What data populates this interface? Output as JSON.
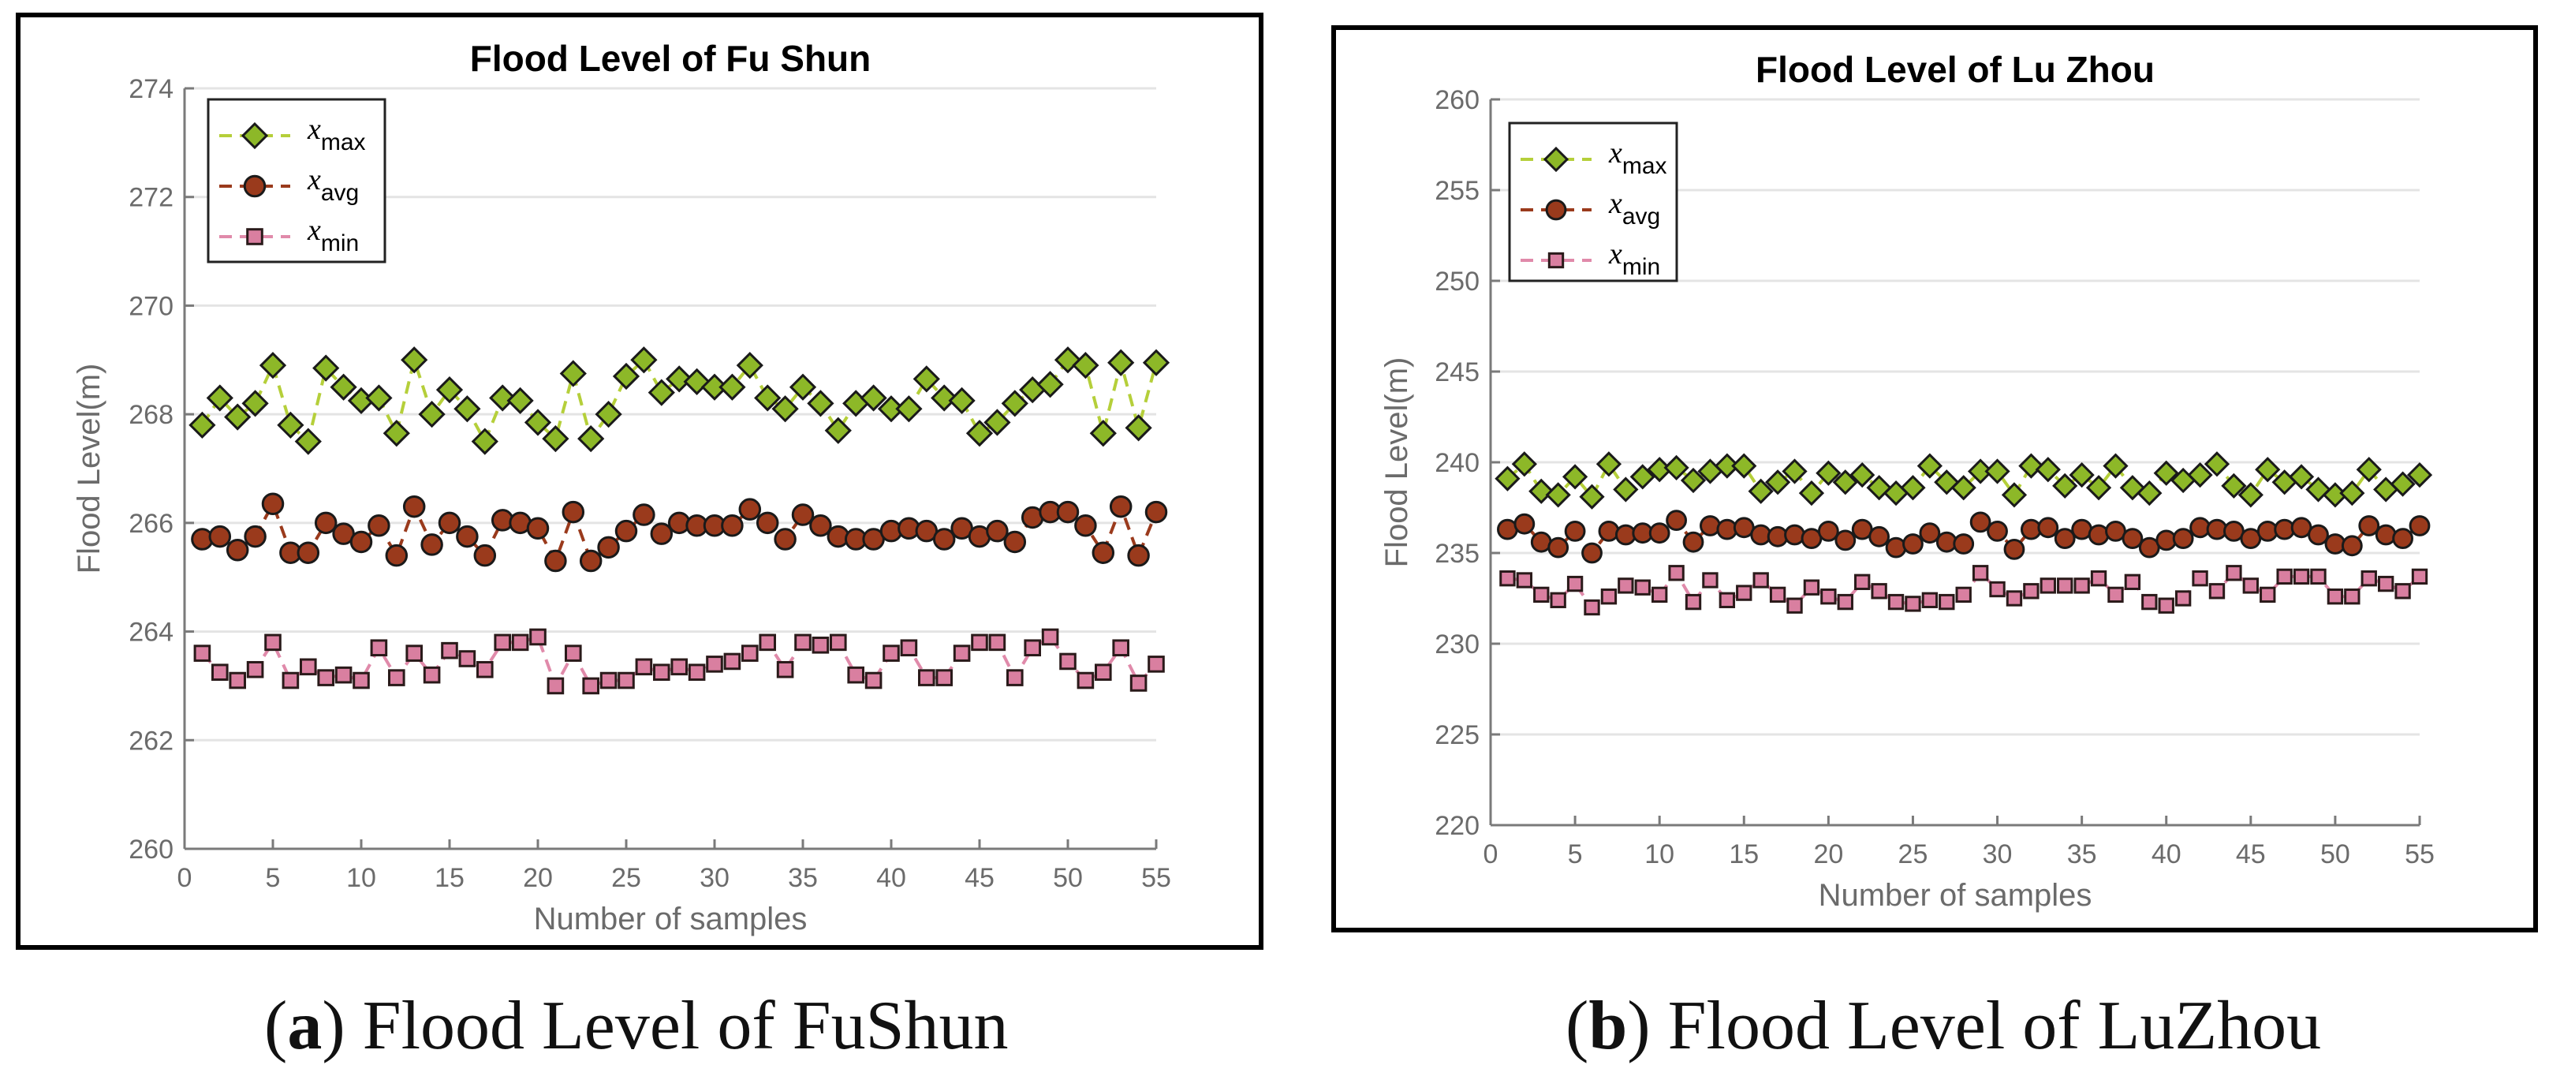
{
  "colors": {
    "max_fill": "#8db828",
    "max_line": "#b5cf3a",
    "avg_fill": "#9a3a1c",
    "avg_line": "#9a3a1c",
    "min_fill": "#d97fa0",
    "min_line": "#e08aaa",
    "axis": "#7a7a7a",
    "grid": "#e4e4e4",
    "text": "#6b6b6b"
  },
  "captions": [
    {
      "letter": "a",
      "text": "Flood Level of FuShun"
    },
    {
      "letter": "b",
      "text": "Flood Level of LuZhou"
    }
  ],
  "chart_data": [
    {
      "type": "line",
      "title": "Flood Level of Fu Shun",
      "xlabel": "Number of samples",
      "ylabel": "Flood Level(m)",
      "xlim": [
        0,
        55
      ],
      "ylim": [
        260,
        274
      ],
      "xticks": [
        0,
        5,
        10,
        15,
        20,
        25,
        30,
        35,
        40,
        45,
        50,
        55
      ],
      "yticks": [
        260,
        262,
        264,
        266,
        268,
        270,
        272,
        274
      ],
      "grid": true,
      "legend_position": "top-left",
      "legend": [
        {
          "base": "x",
          "sub": "max",
          "marker": "diamond"
        },
        {
          "base": "x",
          "sub": "avg",
          "marker": "circle"
        },
        {
          "base": "x",
          "sub": "min",
          "marker": "square"
        }
      ],
      "x": [
        1,
        2,
        3,
        4,
        5,
        6,
        7,
        8,
        9,
        10,
        11,
        12,
        13,
        14,
        15,
        16,
        17,
        18,
        19,
        20,
        21,
        22,
        23,
        24,
        25,
        26,
        27,
        28,
        29,
        30,
        31,
        32,
        33,
        34,
        35,
        36,
        37,
        38,
        39,
        40,
        41,
        42,
        43,
        44,
        45,
        46,
        47,
        48,
        49,
        50,
        51,
        52,
        53,
        54,
        55
      ],
      "series": [
        {
          "name": "x_max",
          "values": [
            267.8,
            268.3,
            267.95,
            268.2,
            268.9,
            267.8,
            267.5,
            268.85,
            268.5,
            268.25,
            268.3,
            267.65,
            269.0,
            268.0,
            268.45,
            268.1,
            267.5,
            268.3,
            268.25,
            267.85,
            267.55,
            268.75,
            267.55,
            268.0,
            268.7,
            269.0,
            268.4,
            268.65,
            268.6,
            268.5,
            268.5,
            268.9,
            268.3,
            268.1,
            268.5,
            268.2,
            267.7,
            268.2,
            268.3,
            268.1,
            268.1,
            268.65,
            268.3,
            268.25,
            267.65,
            267.85,
            268.2,
            268.45,
            268.55,
            269.0,
            268.9,
            267.65,
            268.95,
            267.75,
            268.95
          ]
        },
        {
          "name": "x_avg",
          "values": [
            265.7,
            265.75,
            265.5,
            265.75,
            266.35,
            265.45,
            265.45,
            266.0,
            265.8,
            265.65,
            265.95,
            265.4,
            266.3,
            265.6,
            266.0,
            265.75,
            265.4,
            266.05,
            266.0,
            265.9,
            265.3,
            266.2,
            265.3,
            265.55,
            265.85,
            266.15,
            265.8,
            266.0,
            265.95,
            265.95,
            265.95,
            266.25,
            266.0,
            265.7,
            266.15,
            265.95,
            265.75,
            265.7,
            265.7,
            265.85,
            265.9,
            265.85,
            265.7,
            265.9,
            265.75,
            265.85,
            265.65,
            266.1,
            266.2,
            266.2,
            265.95,
            265.45,
            266.3,
            265.4,
            266.2
          ]
        },
        {
          "name": "x_min",
          "values": [
            263.6,
            263.25,
            263.1,
            263.3,
            263.8,
            263.1,
            263.35,
            263.15,
            263.2,
            263.1,
            263.7,
            263.15,
            263.6,
            263.2,
            263.65,
            263.5,
            263.3,
            263.8,
            263.8,
            263.9,
            263.0,
            263.6,
            263.0,
            263.1,
            263.1,
            263.35,
            263.25,
            263.35,
            263.25,
            263.4,
            263.45,
            263.6,
            263.8,
            263.3,
            263.8,
            263.75,
            263.8,
            263.2,
            263.1,
            263.6,
            263.7,
            263.15,
            263.15,
            263.6,
            263.8,
            263.8,
            263.15,
            263.7,
            263.9,
            263.45,
            263.1,
            263.25,
            263.7,
            263.05,
            263.4
          ]
        }
      ]
    },
    {
      "type": "line",
      "title": "Flood Level of Lu Zhou",
      "xlabel": "Number of samples",
      "ylabel": "Flood Level(m)",
      "xlim": [
        0,
        55
      ],
      "ylim": [
        220,
        260
      ],
      "xticks": [
        0,
        5,
        10,
        15,
        20,
        25,
        30,
        35,
        40,
        45,
        50,
        55
      ],
      "yticks": [
        220,
        225,
        230,
        235,
        240,
        245,
        250,
        255,
        260
      ],
      "grid": true,
      "legend_position": "top-left",
      "legend": [
        {
          "base": "x",
          "sub": "max",
          "marker": "diamond"
        },
        {
          "base": "x",
          "sub": "avg",
          "marker": "circle"
        },
        {
          "base": "x",
          "sub": "min",
          "marker": "square"
        }
      ],
      "x": [
        1,
        2,
        3,
        4,
        5,
        6,
        7,
        8,
        9,
        10,
        11,
        12,
        13,
        14,
        15,
        16,
        17,
        18,
        19,
        20,
        21,
        22,
        23,
        24,
        25,
        26,
        27,
        28,
        29,
        30,
        31,
        32,
        33,
        34,
        35,
        36,
        37,
        38,
        39,
        40,
        41,
        42,
        43,
        44,
        45,
        46,
        47,
        48,
        49,
        50,
        51,
        52,
        53,
        54,
        55
      ],
      "series": [
        {
          "name": "x_max",
          "values": [
            239.1,
            239.9,
            238.4,
            238.2,
            239.2,
            238.1,
            239.9,
            238.5,
            239.2,
            239.6,
            239.7,
            239.0,
            239.5,
            239.8,
            239.8,
            238.4,
            238.9,
            239.5,
            238.3,
            239.4,
            238.9,
            239.3,
            238.6,
            238.3,
            238.6,
            239.8,
            238.9,
            238.6,
            239.5,
            239.5,
            238.2,
            239.8,
            239.6,
            238.7,
            239.3,
            238.6,
            239.8,
            238.6,
            238.3,
            239.4,
            239.0,
            239.3,
            239.9,
            238.7,
            238.2,
            239.6,
            238.9,
            239.2,
            238.5,
            238.2,
            238.3,
            239.6,
            238.5,
            238.8,
            239.3
          ]
        },
        {
          "name": "x_avg",
          "values": [
            236.3,
            236.6,
            235.6,
            235.3,
            236.2,
            235.0,
            236.2,
            236.0,
            236.1,
            236.1,
            236.8,
            235.6,
            236.5,
            236.3,
            236.4,
            236.0,
            235.9,
            236.0,
            235.8,
            236.2,
            235.7,
            236.3,
            235.9,
            235.3,
            235.5,
            236.1,
            235.6,
            235.5,
            236.7,
            236.2,
            235.2,
            236.3,
            236.4,
            235.8,
            236.3,
            236.0,
            236.2,
            235.8,
            235.3,
            235.7,
            235.8,
            236.4,
            236.3,
            236.2,
            235.8,
            236.2,
            236.3,
            236.4,
            236.0,
            235.5,
            235.4,
            236.5,
            236.0,
            235.8,
            236.5
          ]
        },
        {
          "name": "x_min",
          "values": [
            233.6,
            233.5,
            232.7,
            232.4,
            233.3,
            232.0,
            232.6,
            233.2,
            233.1,
            232.7,
            233.9,
            232.3,
            233.5,
            232.4,
            232.8,
            233.5,
            232.7,
            232.1,
            233.1,
            232.6,
            232.3,
            233.4,
            232.9,
            232.3,
            232.2,
            232.4,
            232.3,
            232.7,
            233.9,
            233.0,
            232.5,
            232.9,
            233.2,
            233.2,
            233.2,
            233.6,
            232.7,
            233.4,
            232.3,
            232.1,
            232.5,
            233.6,
            232.9,
            233.9,
            233.2,
            232.7,
            233.7,
            233.7,
            233.7,
            232.6,
            232.6,
            233.6,
            233.3,
            232.9,
            233.7
          ]
        }
      ]
    }
  ]
}
